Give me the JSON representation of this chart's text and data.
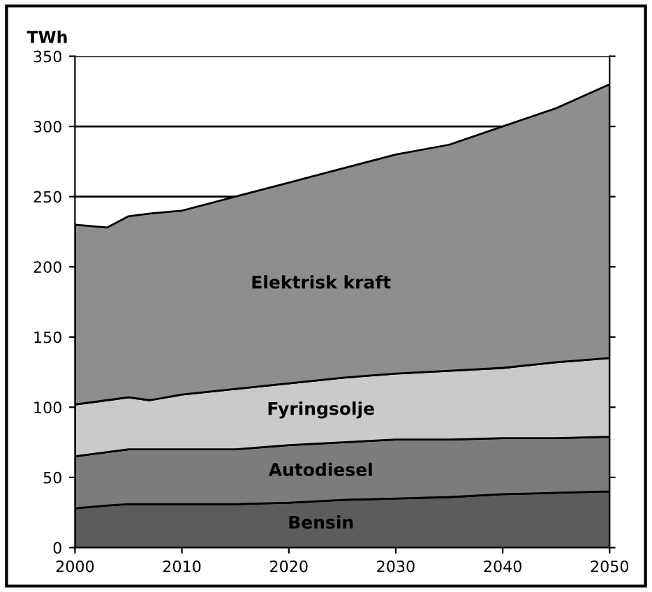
{
  "chart_data": {
    "type": "area",
    "stacked": true,
    "ylabel": "TWh",
    "x": [
      2000,
      2003,
      2005,
      2007,
      2010,
      2015,
      2020,
      2025,
      2030,
      2035,
      2040,
      2045,
      2050
    ],
    "series": [
      {
        "name": "Bensin",
        "color": "#5c5c5c",
        "values": [
          28,
          30,
          31,
          31,
          31,
          31,
          32,
          34,
          35,
          36,
          38,
          39,
          40
        ]
      },
      {
        "name": "Autodiesel",
        "color": "#7c7c7c",
        "values": [
          37,
          38,
          39,
          39,
          39,
          39,
          41,
          41,
          42,
          41,
          40,
          39,
          39
        ]
      },
      {
        "name": "Fyringsolje",
        "color": "#cacaca",
        "values": [
          37,
          37,
          37,
          35,
          39,
          43,
          44,
          46,
          47,
          49,
          50,
          54,
          56
        ]
      },
      {
        "name": "Elektrisk kraft",
        "color": "#8e8e8e",
        "values": [
          128,
          123,
          129,
          133,
          131,
          137,
          143,
          149,
          156,
          161,
          172,
          181,
          195
        ]
      }
    ],
    "xlim": [
      2000,
      2050
    ],
    "xticks": [
      2000,
      2010,
      2020,
      2030,
      2040,
      2050
    ],
    "ylim": [
      0,
      350
    ],
    "yticks": [
      0,
      50,
      100,
      150,
      200,
      250,
      300,
      350
    ],
    "grid": "y",
    "legend": false
  }
}
